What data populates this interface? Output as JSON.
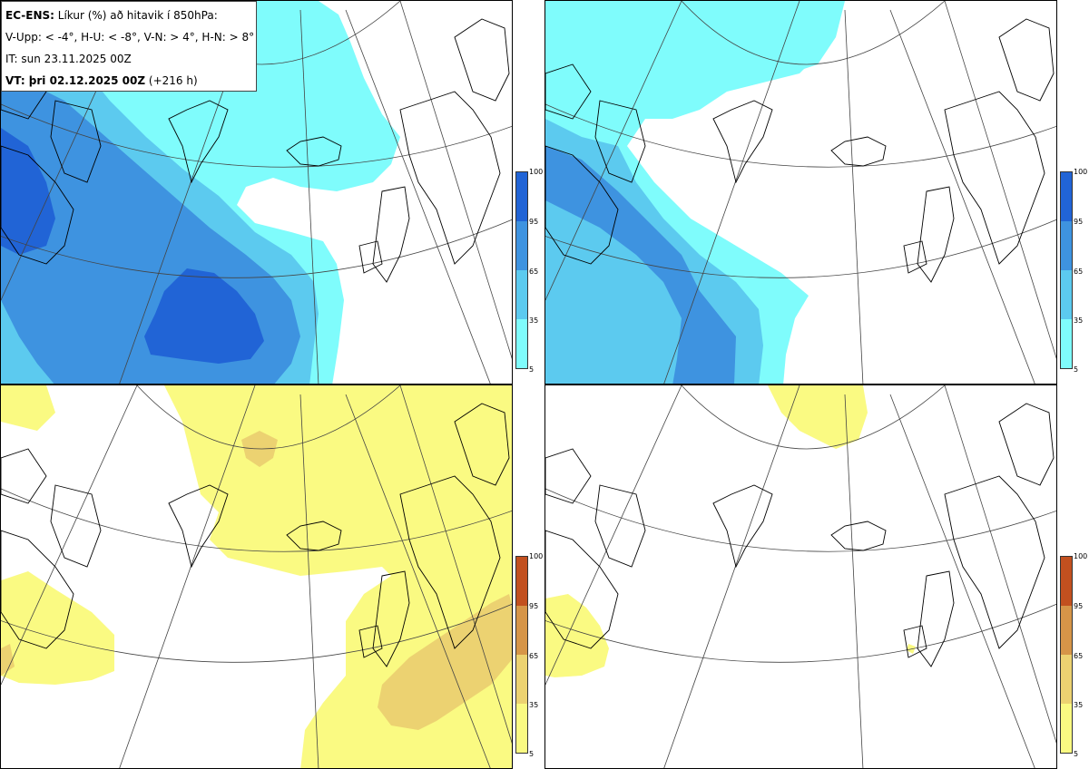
{
  "legend": {
    "line1_bold": "EC-ENS:",
    "line1_rest": " Líkur (%) að hitavik í 850hPa:",
    "line2": "V-Upp: < -4°, H-U: < -8°, V-N: > 4°, H-N: > 8°",
    "line3": "IT: sun 23.11.2025 00Z",
    "line4_bold": "VT: þri 02.12.2025 00Z",
    "line4_rest": " (+216 h)"
  },
  "colorbar_ticks": [
    "100",
    "95",
    "65",
    "35",
    "5"
  ],
  "colors": {
    "cold_5": "#7ffcfc",
    "cold_35": "#5ccaef",
    "cold_65": "#3e93e0",
    "cold_95": "#2164d6",
    "warm_5": "#fafa82",
    "warm_35": "#ecd271",
    "warm_65": "#d69548",
    "warm_95": "#c2501f",
    "land_line": "#000000",
    "grid_line": "#444444"
  },
  "panels": [
    {
      "id": "top-left",
      "variable": "V-Upp: < -4°",
      "levels": [
        5,
        35,
        65,
        95
      ]
    },
    {
      "id": "top-right",
      "variable": "H-U: < -8°",
      "levels": [
        5,
        35,
        65
      ]
    },
    {
      "id": "bottom-left",
      "variable": "V-N: > 4°",
      "levels": [
        5,
        35
      ]
    },
    {
      "id": "bottom-right",
      "variable": "H-N: > 8°",
      "levels": [
        5
      ]
    }
  ]
}
